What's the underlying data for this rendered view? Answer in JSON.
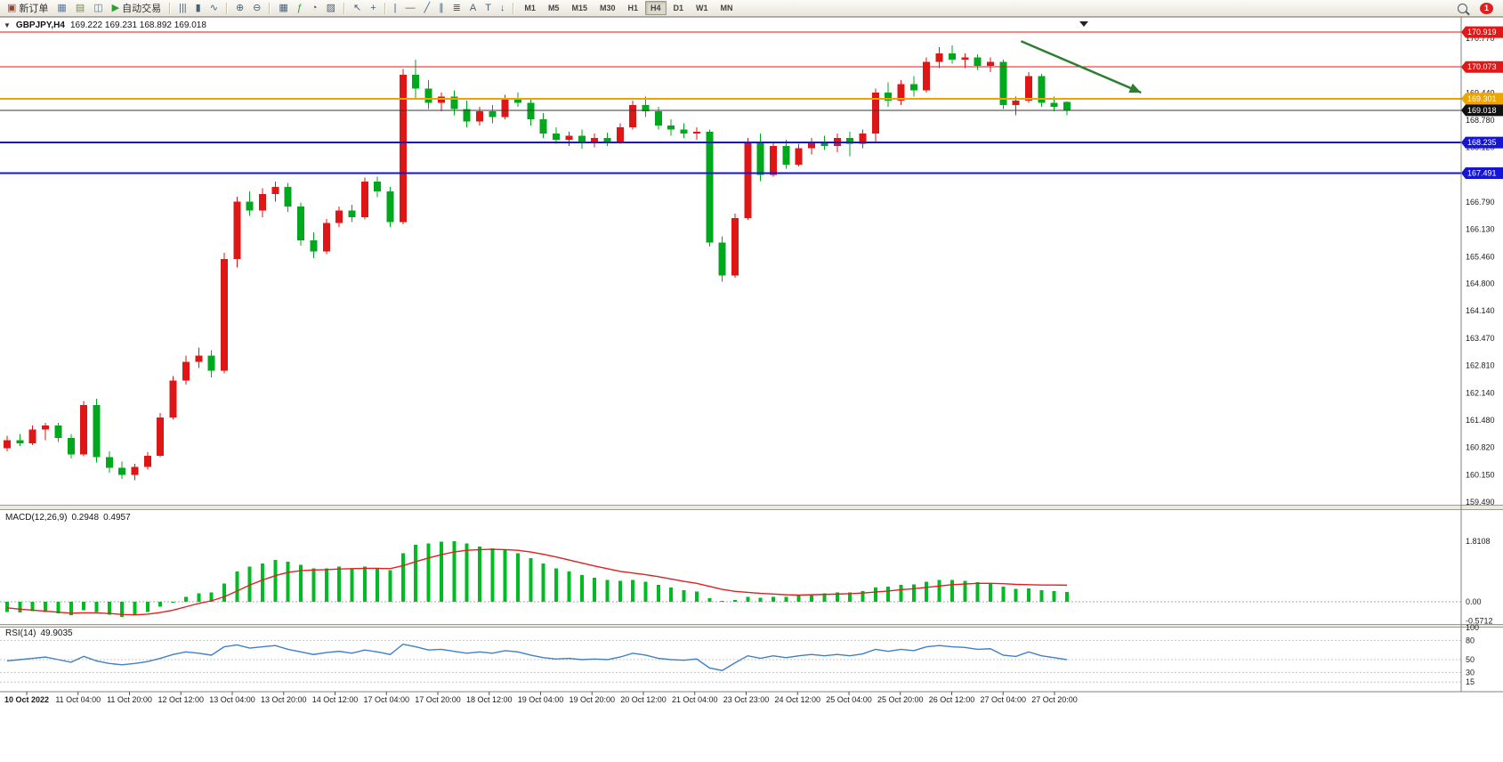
{
  "window": {
    "symbol": "GBPJPY,H4",
    "ohlc_line": "169.222 169.231 168.892 169.018",
    "collapse_arrow": "▼"
  },
  "toolbar": {
    "items": [
      {
        "name": "new-order",
        "icon": "▣",
        "icon_color": "#a04028",
        "label": "新订单"
      },
      {
        "name": "chart-windows",
        "icon": "▦",
        "icon_color": "#5a7aa8"
      },
      {
        "name": "profiles",
        "icon": "▤",
        "icon_color": "#7a8a55"
      },
      {
        "name": "data-window",
        "icon": "◫",
        "icon_color": "#667788"
      },
      {
        "name": "auto-trading",
        "icon": "▶",
        "icon_color": "#2f9e2f",
        "label": "自动交易"
      },
      {
        "type": "sep"
      },
      {
        "name": "bar-chart",
        "icon": "|||"
      },
      {
        "name": "candlestick-chart",
        "icon": "▮"
      },
      {
        "name": "line-chart",
        "icon": "∿"
      },
      {
        "type": "sep"
      },
      {
        "name": "zoom-in",
        "icon": "⊕"
      },
      {
        "name": "zoom-out",
        "icon": "⊖"
      },
      {
        "type": "sep"
      },
      {
        "name": "tile-windows",
        "icon": "▦"
      },
      {
        "name": "add-indicator",
        "icon": "ƒ",
        "icon_color": "#2f9e2f"
      },
      {
        "name": "period-settings",
        "icon": "◔"
      },
      {
        "name": "templates",
        "icon": "▨"
      },
      {
        "type": "sep"
      },
      {
        "name": "cursor",
        "icon": "↖"
      },
      {
        "name": "crosshair",
        "icon": "+"
      },
      {
        "type": "sep"
      },
      {
        "name": "vertical-line",
        "icon": "|"
      },
      {
        "name": "horizontal-line",
        "icon": "—"
      },
      {
        "name": "trendline",
        "icon": "╱"
      },
      {
        "name": "equidistant-channel",
        "icon": "∥"
      },
      {
        "name": "fibonacci",
        "icon": "≣"
      },
      {
        "name": "text",
        "icon": "A"
      },
      {
        "name": "text-label",
        "icon": "T"
      },
      {
        "name": "arrow-marker",
        "icon": "↓"
      },
      {
        "type": "sep"
      }
    ],
    "timeframes": [
      "M1",
      "M5",
      "M15",
      "M30",
      "H1",
      "H4",
      "D1",
      "W1",
      "MN"
    ],
    "active_timeframe": "H4",
    "notification_count": "1"
  },
  "chart_data": {
    "type": "candlestick",
    "symbol": "GBPJPY",
    "timeframe": "H4",
    "current": {
      "open": "169.222",
      "high": "169.231",
      "low": "168.892",
      "close": "169.018"
    },
    "price_up_color": "#e01515",
    "price_down_color": "#00a81e",
    "candles": [
      [
        160.8,
        161.1,
        160.72,
        161.0
      ],
      [
        161.0,
        161.15,
        160.85,
        160.92
      ],
      [
        160.92,
        161.35,
        160.88,
        161.25
      ],
      [
        161.25,
        161.42,
        161.0,
        161.35
      ],
      [
        161.35,
        161.42,
        160.95,
        161.05
      ],
      [
        161.05,
        161.15,
        160.55,
        160.65
      ],
      [
        160.65,
        161.95,
        160.6,
        161.85
      ],
      [
        161.85,
        162.0,
        160.45,
        160.58
      ],
      [
        160.58,
        160.72,
        160.2,
        160.32
      ],
      [
        160.32,
        160.48,
        160.05,
        160.15
      ],
      [
        160.15,
        160.42,
        160.02,
        160.35
      ],
      [
        160.35,
        160.7,
        160.28,
        160.62
      ],
      [
        160.62,
        161.65,
        160.58,
        161.55
      ],
      [
        161.55,
        162.55,
        161.5,
        162.45
      ],
      [
        162.45,
        163.05,
        162.35,
        162.9
      ],
      [
        162.9,
        163.25,
        162.75,
        163.05
      ],
      [
        163.05,
        163.18,
        162.52,
        162.68
      ],
      [
        162.68,
        165.55,
        162.62,
        165.4
      ],
      [
        165.4,
        166.92,
        165.2,
        166.8
      ],
      [
        166.8,
        167.05,
        166.45,
        166.58
      ],
      [
        166.58,
        167.12,
        166.42,
        166.98
      ],
      [
        166.98,
        167.28,
        166.8,
        167.15
      ],
      [
        167.15,
        167.25,
        166.55,
        166.68
      ],
      [
        166.68,
        166.78,
        165.72,
        165.85
      ],
      [
        165.85,
        166.05,
        165.42,
        165.58
      ],
      [
        165.58,
        166.38,
        165.52,
        166.28
      ],
      [
        166.28,
        166.68,
        166.18,
        166.58
      ],
      [
        166.58,
        166.72,
        166.3,
        166.42
      ],
      [
        166.42,
        167.38,
        166.36,
        167.28
      ],
      [
        167.28,
        167.4,
        166.9,
        167.05
      ],
      [
        167.05,
        167.15,
        166.18,
        166.3
      ],
      [
        166.3,
        170.02,
        166.25,
        169.88
      ],
      [
        169.88,
        170.25,
        169.3,
        169.55
      ],
      [
        169.55,
        169.75,
        169.05,
        169.2
      ],
      [
        169.2,
        169.45,
        169.0,
        169.35
      ],
      [
        169.35,
        169.5,
        168.9,
        169.05
      ],
      [
        169.05,
        169.25,
        168.6,
        168.75
      ],
      [
        168.75,
        169.1,
        168.65,
        169.0
      ],
      [
        169.0,
        169.15,
        168.7,
        168.85
      ],
      [
        168.85,
        169.4,
        168.8,
        169.3
      ],
      [
        169.3,
        169.45,
        169.1,
        169.2
      ],
      [
        169.2,
        169.3,
        168.65,
        168.8
      ],
      [
        168.8,
        168.95,
        168.35,
        168.45
      ],
      [
        168.45,
        168.6,
        168.2,
        168.3
      ],
      [
        168.3,
        168.5,
        168.15,
        168.4
      ],
      [
        168.4,
        168.55,
        168.08,
        168.22
      ],
      [
        168.22,
        168.45,
        168.12,
        168.35
      ],
      [
        168.35,
        168.48,
        168.15,
        168.25
      ],
      [
        168.25,
        168.7,
        168.2,
        168.6
      ],
      [
        168.6,
        169.25,
        168.55,
        169.15
      ],
      [
        169.15,
        169.35,
        168.85,
        169.0
      ],
      [
        169.0,
        169.1,
        168.55,
        168.65
      ],
      [
        168.65,
        168.8,
        168.4,
        168.55
      ],
      [
        168.55,
        168.7,
        168.35,
        168.45
      ],
      [
        168.45,
        168.6,
        168.3,
        168.5
      ],
      [
        168.5,
        168.55,
        165.7,
        165.8
      ],
      [
        165.8,
        165.95,
        164.85,
        165.0
      ],
      [
        165.0,
        166.5,
        164.95,
        166.4
      ],
      [
        166.4,
        168.35,
        166.35,
        168.25
      ],
      [
        168.25,
        168.45,
        167.3,
        167.45
      ],
      [
        167.45,
        168.25,
        167.4,
        168.15
      ],
      [
        168.15,
        168.3,
        167.6,
        167.7
      ],
      [
        167.7,
        168.2,
        167.65,
        168.1
      ],
      [
        168.1,
        168.35,
        167.95,
        168.25
      ],
      [
        168.25,
        168.4,
        168.05,
        168.15
      ],
      [
        168.15,
        168.45,
        168.0,
        168.35
      ],
      [
        168.35,
        168.5,
        167.9,
        168.2
      ],
      [
        168.2,
        168.55,
        168.1,
        168.45
      ],
      [
        168.45,
        169.55,
        168.25,
        169.45
      ],
      [
        169.45,
        169.7,
        169.1,
        169.25
      ],
      [
        169.25,
        169.75,
        169.15,
        169.65
      ],
      [
        169.65,
        169.85,
        169.35,
        169.5
      ],
      [
        169.5,
        170.3,
        169.45,
        170.2
      ],
      [
        170.2,
        170.55,
        170.05,
        170.4
      ],
      [
        170.4,
        170.6,
        170.15,
        170.25
      ],
      [
        170.25,
        170.4,
        170.05,
        170.3
      ],
      [
        170.3,
        170.38,
        170.0,
        170.1
      ],
      [
        170.1,
        170.3,
        169.95,
        170.2
      ],
      [
        170.2,
        170.25,
        169.05,
        169.15
      ],
      [
        169.15,
        169.35,
        168.9,
        169.25
      ],
      [
        169.25,
        169.95,
        169.2,
        169.85
      ],
      [
        169.85,
        169.9,
        169.1,
        169.2
      ],
      [
        169.2,
        169.35,
        169.0,
        169.1
      ],
      [
        169.222,
        169.231,
        168.892,
        169.018
      ]
    ],
    "y_axis_labels": [
      "170.770",
      "170.110",
      "169.440",
      "168.780",
      "168.120",
      "167.450",
      "166.790",
      "166.130",
      "165.460",
      "164.800",
      "164.140",
      "163.470",
      "162.810",
      "162.140",
      "161.480",
      "160.820",
      "160.150",
      "159.490"
    ],
    "x_labels": [
      "10 Oct 2022",
      "11 Oct 04:00",
      "11 Oct 20:00",
      "12 Oct 12:00",
      "13 Oct 04:00",
      "13 Oct 20:00",
      "14 Oct 12:00",
      "17 Oct 04:00",
      "17 Oct 20:00",
      "18 Oct 12:00",
      "19 Oct 04:00",
      "19 Oct 20:00",
      "20 Oct 12:00",
      "21 Oct 04:00",
      "23 Oct 23:00",
      "24 Oct 12:00",
      "25 Oct 04:00",
      "25 Oct 20:00",
      "26 Oct 12:00",
      "27 Oct 04:00",
      "27 Oct 20:00"
    ],
    "horizontal_lines": [
      {
        "price": 170.919,
        "label": "170.919",
        "color": "#e21717",
        "width": 1
      },
      {
        "price": 170.073,
        "label": "170.073",
        "color": "#e21717",
        "width": 1
      },
      {
        "price": 169.301,
        "label": "169.301",
        "color": "#efa500",
        "width": 2
      },
      {
        "price": 169.018,
        "label": "169.018",
        "color": "#3a3a3a",
        "width": 1,
        "badge_color": "#111111"
      },
      {
        "price": 168.235,
        "label": "168.235",
        "color": "#1616d0",
        "width": 2
      },
      {
        "price": 167.491,
        "label": "167.491",
        "color": "#1616d0",
        "width": 2
      }
    ],
    "annotations": [
      {
        "type": "arrow",
        "color": "#2e7d32",
        "from": {
          "index": 79.4,
          "price": 170.7
        },
        "to": {
          "index": 88.8,
          "price": 169.45
        }
      }
    ],
    "indicators": {
      "macd": {
        "label": "MACD(12,26,9)",
        "value_main": "0.2948",
        "value_signal": "0.4957",
        "scale_labels": [
          "1.8108",
          "0.00",
          "-0.5712"
        ],
        "scale_values": [
          1.8108,
          0,
          -0.5712
        ],
        "histogram_color": "#00bb22",
        "signal_color": "#e02020",
        "histogram": [
          -0.3,
          -0.32,
          -0.28,
          -0.3,
          -0.35,
          -0.4,
          -0.25,
          -0.3,
          -0.38,
          -0.45,
          -0.4,
          -0.3,
          -0.15,
          0.0,
          0.15,
          0.25,
          0.28,
          0.55,
          0.9,
          1.05,
          1.15,
          1.25,
          1.2,
          1.1,
          1.0,
          1.0,
          1.05,
          1.0,
          1.05,
          1.0,
          0.95,
          1.45,
          1.7,
          1.75,
          1.8,
          1.81,
          1.75,
          1.65,
          1.6,
          1.55,
          1.45,
          1.3,
          1.15,
          1.0,
          0.9,
          0.8,
          0.72,
          0.65,
          0.62,
          0.65,
          0.6,
          0.5,
          0.42,
          0.35,
          0.3,
          0.1,
          0.02,
          0.05,
          0.15,
          0.12,
          0.15,
          0.15,
          0.18,
          0.22,
          0.25,
          0.28,
          0.28,
          0.32,
          0.42,
          0.45,
          0.5,
          0.52,
          0.6,
          0.65,
          0.65,
          0.62,
          0.58,
          0.55,
          0.45,
          0.38,
          0.4,
          0.35,
          0.32,
          0.29
        ],
        "signal": [
          -0.18,
          -0.22,
          -0.25,
          -0.28,
          -0.31,
          -0.34,
          -0.33,
          -0.33,
          -0.35,
          -0.38,
          -0.39,
          -0.37,
          -0.32,
          -0.25,
          -0.15,
          -0.05,
          0.03,
          0.15,
          0.32,
          0.5,
          0.65,
          0.78,
          0.88,
          0.93,
          0.95,
          0.96,
          0.98,
          0.99,
          1.0,
          1.0,
          0.99,
          1.08,
          1.2,
          1.31,
          1.41,
          1.49,
          1.54,
          1.56,
          1.57,
          1.56,
          1.54,
          1.49,
          1.42,
          1.34,
          1.25,
          1.16,
          1.07,
          0.99,
          0.91,
          0.86,
          0.81,
          0.75,
          0.68,
          0.61,
          0.55,
          0.46,
          0.37,
          0.31,
          0.28,
          0.25,
          0.23,
          0.21,
          0.2,
          0.21,
          0.22,
          0.23,
          0.24,
          0.26,
          0.29,
          0.32,
          0.36,
          0.39,
          0.43,
          0.47,
          0.51,
          0.53,
          0.55,
          0.55,
          0.54,
          0.52,
          0.51,
          0.5,
          0.5,
          0.496
        ]
      },
      "rsi": {
        "label": "RSI(14)",
        "value": "49.9035",
        "levels": [
          100,
          80,
          50,
          30,
          15
        ],
        "line_color": "#3f7fca",
        "values": [
          48,
          50,
          52,
          54,
          50,
          46,
          55,
          48,
          44,
          42,
          44,
          47,
          52,
          58,
          62,
          60,
          57,
          70,
          73,
          68,
          70,
          72,
          66,
          62,
          58,
          61,
          63,
          60,
          65,
          62,
          58,
          74,
          70,
          65,
          66,
          63,
          60,
          62,
          60,
          64,
          62,
          57,
          53,
          51,
          52,
          50,
          51,
          50,
          54,
          60,
          57,
          52,
          50,
          49,
          51,
          37,
          33,
          45,
          56,
          52,
          56,
          53,
          56,
          58,
          56,
          58,
          56,
          59,
          66,
          63,
          66,
          64,
          70,
          72,
          70,
          69,
          66,
          67,
          57,
          55,
          62,
          56,
          53,
          49.9
        ]
      }
    }
  }
}
